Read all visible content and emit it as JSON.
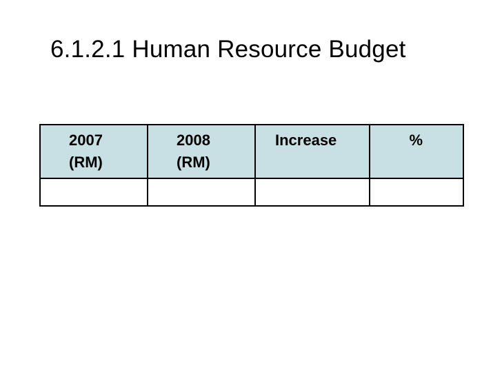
{
  "slide": {
    "title": "6.1.2.1 Human Resource Budget"
  },
  "table": {
    "headers": [
      "2007\n(RM)",
      "2008\n(RM)",
      "Increase",
      "%"
    ],
    "rows": [
      [
        "",
        "",
        "",
        ""
      ]
    ]
  },
  "colors": {
    "header_background": "#c8e0e4",
    "border": "#000000",
    "text": "#000000"
  }
}
